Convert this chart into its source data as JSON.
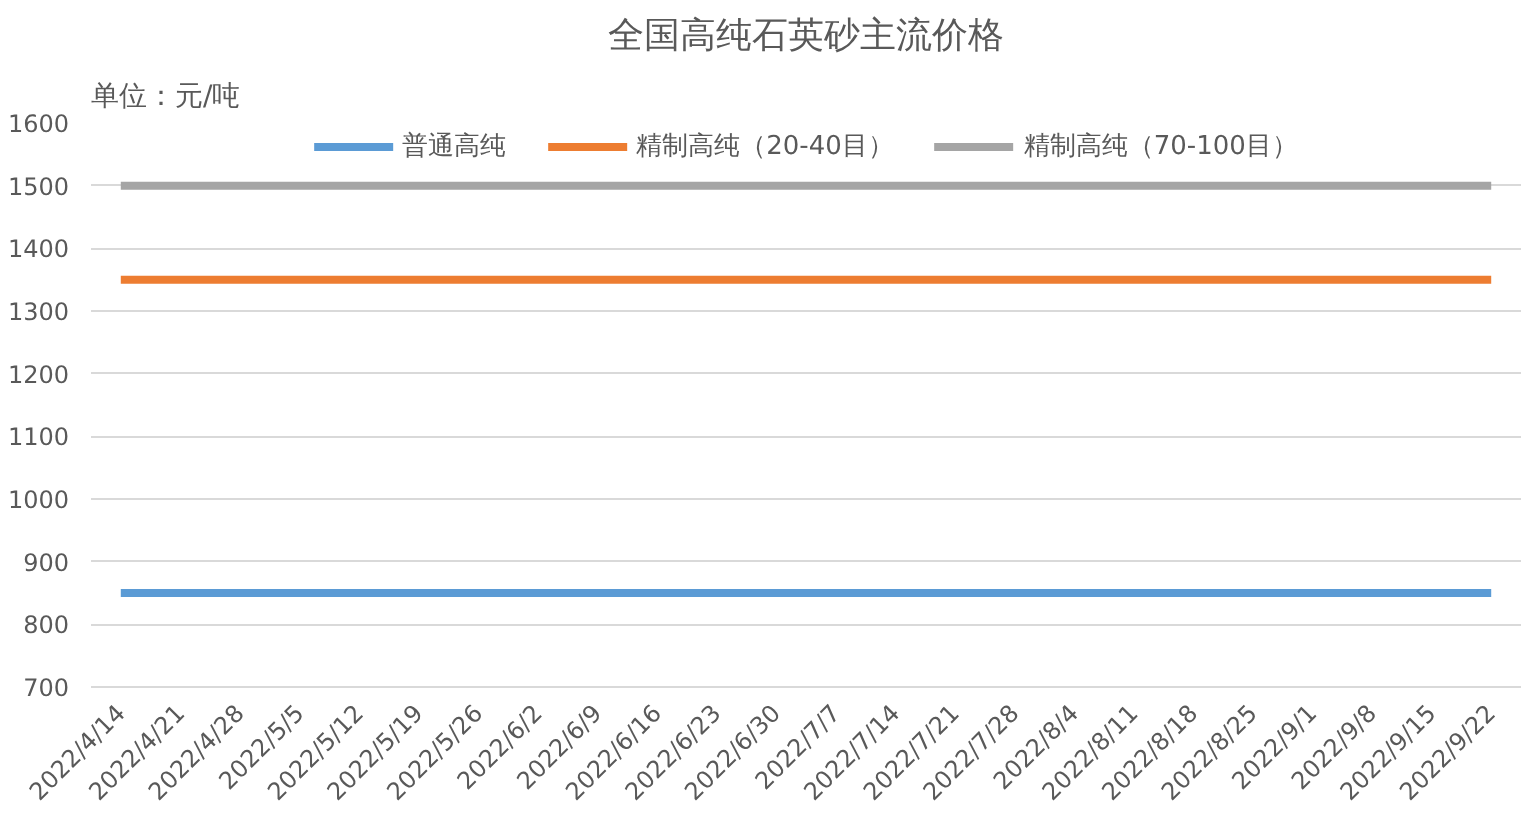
{
  "chart_data": {
    "type": "line",
    "title": "全国高纯石英砂主流价格",
    "annotations": [
      "单位：元/吨"
    ],
    "categories": [
      "2022/4/14",
      "2022/4/21",
      "2022/4/28",
      "2022/5/5",
      "2022/5/12",
      "2022/5/19",
      "2022/5/26",
      "2022/6/2",
      "2022/6/9",
      "2022/6/16",
      "2022/6/23",
      "2022/6/30",
      "2022/7/7",
      "2022/7/14",
      "2022/7/21",
      "2022/7/28",
      "2022/8/4",
      "2022/8/11",
      "2022/8/18",
      "2022/8/25",
      "2022/9/1",
      "2022/9/8",
      "2022/9/15",
      "2022/9/22"
    ],
    "series": [
      {
        "name": "普通高纯",
        "color": "#5b9bd5",
        "values": [
          850,
          850,
          850,
          850,
          850,
          850,
          850,
          850,
          850,
          850,
          850,
          850,
          850,
          850,
          850,
          850,
          850,
          850,
          850,
          850,
          850,
          850,
          850,
          850
        ]
      },
      {
        "name": "精制高纯（20-40目）",
        "color": "#ed7d31",
        "values": [
          1350,
          1350,
          1350,
          1350,
          1350,
          1350,
          1350,
          1350,
          1350,
          1350,
          1350,
          1350,
          1350,
          1350,
          1350,
          1350,
          1350,
          1350,
          1350,
          1350,
          1350,
          1350,
          1350,
          1350
        ]
      },
      {
        "name": "精制高纯（70-100目）",
        "color": "#a5a5a5",
        "values": [
          1500,
          1500,
          1500,
          1500,
          1500,
          1500,
          1500,
          1500,
          1500,
          1500,
          1500,
          1500,
          1500,
          1500,
          1500,
          1500,
          1500,
          1500,
          1500,
          1500,
          1500,
          1500,
          1500,
          1500
        ]
      }
    ],
    "ylim": [
      700,
      1600
    ],
    "yticks": [
      700,
      800,
      900,
      1000,
      1100,
      1200,
      1300,
      1400,
      1500,
      1600
    ],
    "grid": "y",
    "legend": "top",
    "line_style": "solid"
  }
}
